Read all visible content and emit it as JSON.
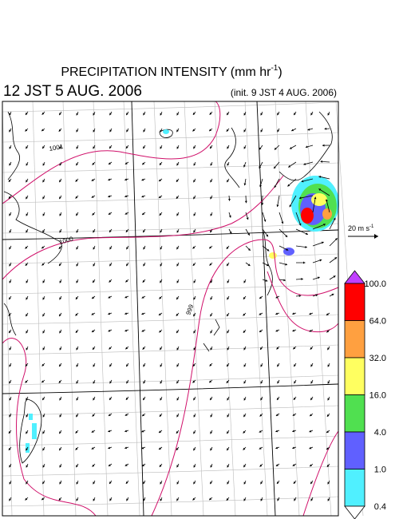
{
  "header": {
    "title": "PRECIPITATION INTENSITY (mm hr",
    "title_exponent": "-1",
    "title_close": ")",
    "valid_time": "12 JST 5 AUG. 2006",
    "init_time": "(init. 9 JST 4 AUG. 2006)"
  },
  "wind_scale": {
    "label": "20 m s",
    "exponent": "-1"
  },
  "contour_labels": [
    "1001",
    "1000",
    "999"
  ],
  "colorbar": {
    "labels": [
      "100.0",
      "64.0",
      "32.0",
      "16.0",
      "4.0",
      "1.0",
      "0.4"
    ],
    "colors": [
      "#ff0000",
      "#ffa040",
      "#ffff60",
      "#50e050",
      "#6060ff",
      "#50f0ff"
    ],
    "top_color": "#c040ff",
    "bottom_color": "#ffffff"
  }
}
